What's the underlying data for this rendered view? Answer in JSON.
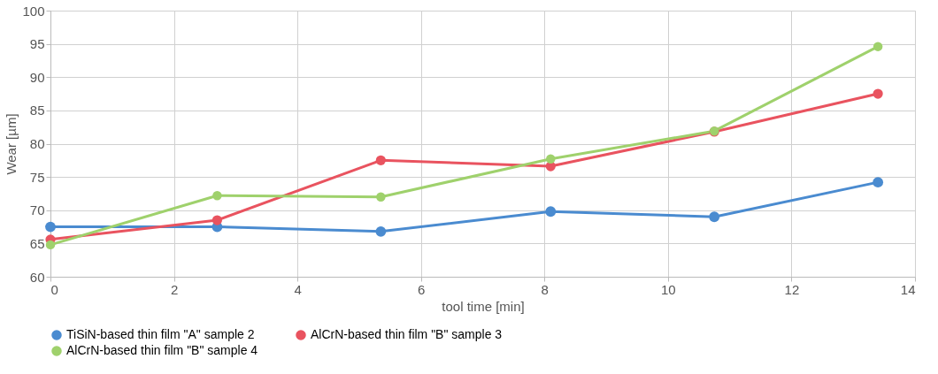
{
  "chart_data": {
    "type": "line",
    "xlabel": "tool time [min]",
    "ylabel": "Wear [µm]",
    "x": [
      0,
      2.7,
      5.35,
      8.1,
      10.75,
      13.4
    ],
    "series": [
      {
        "name": "TiSiN-based thin film \"A\" sample 2",
        "color": "#4a8bd0",
        "values": [
          67.5,
          67.5,
          66.8,
          69.8,
          69.0,
          74.2
        ]
      },
      {
        "name": "AlCrN-based thin film \"B\" sample 3",
        "color": "#e9535f",
        "values": [
          65.6,
          68.5,
          77.5,
          76.6,
          81.8,
          87.5
        ]
      },
      {
        "name": "AlCrN-based thin film \"B\" sample 4",
        "color": "#9fd16c",
        "values": [
          64.8,
          72.2,
          72.0,
          77.7,
          81.9,
          94.6
        ]
      }
    ],
    "xlim": [
      0,
      14
    ],
    "xticks": [
      0,
      2,
      4,
      6,
      8,
      10,
      12,
      14
    ],
    "ylim": [
      60,
      100
    ],
    "yticks": [
      60,
      65,
      70,
      75,
      80,
      85,
      90,
      95,
      100
    ],
    "grid": true,
    "legend": "bottom",
    "marker": "circle",
    "line_style": "solid"
  }
}
